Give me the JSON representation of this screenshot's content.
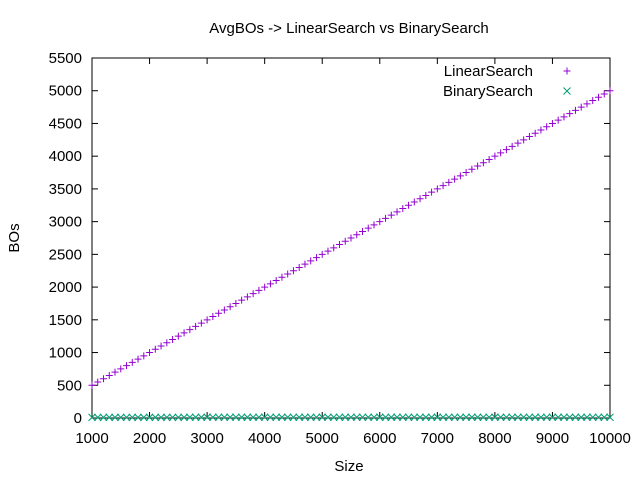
{
  "chart_data": {
    "type": "scatter",
    "title": "AvgBOs -> LinearSearch vs BinarySearch",
    "xlabel": "Size",
    "ylabel": "BOs",
    "xlim": [
      1000,
      10000
    ],
    "ylim": [
      0,
      5500
    ],
    "xticks": [
      1000,
      2000,
      3000,
      4000,
      5000,
      6000,
      7000,
      8000,
      9000,
      10000
    ],
    "yticks": [
      0,
      500,
      1000,
      1500,
      2000,
      2500,
      3000,
      3500,
      4000,
      4500,
      5000,
      5500
    ],
    "grid": false,
    "legend_position": "top-right",
    "series": [
      {
        "name": "LinearSearch",
        "color": "#9400d3",
        "marker": "plus",
        "x": [
          1000,
          1100,
          1200,
          1300,
          1400,
          1500,
          1600,
          1700,
          1800,
          1900,
          2000,
          2100,
          2200,
          2300,
          2400,
          2500,
          2600,
          2700,
          2800,
          2900,
          3000,
          3100,
          3200,
          3300,
          3400,
          3500,
          3600,
          3700,
          3800,
          3900,
          4000,
          4100,
          4200,
          4300,
          4400,
          4500,
          4600,
          4700,
          4800,
          4900,
          5000,
          5100,
          5200,
          5300,
          5400,
          5500,
          5600,
          5700,
          5800,
          5900,
          6000,
          6100,
          6200,
          6300,
          6400,
          6500,
          6600,
          6700,
          6800,
          6900,
          7000,
          7100,
          7200,
          7300,
          7400,
          7500,
          7600,
          7700,
          7800,
          7900,
          8000,
          8100,
          8200,
          8300,
          8400,
          8500,
          8600,
          8700,
          8800,
          8900,
          9000,
          9100,
          9200,
          9300,
          9400,
          9500,
          9600,
          9700,
          9800,
          9900,
          10000
        ],
        "y": [
          500,
          550,
          600,
          650,
          700,
          750,
          800,
          850,
          900,
          950,
          1000,
          1050,
          1100,
          1150,
          1200,
          1250,
          1300,
          1350,
          1400,
          1450,
          1500,
          1550,
          1600,
          1650,
          1700,
          1750,
          1800,
          1850,
          1900,
          1950,
          2000,
          2050,
          2100,
          2150,
          2200,
          2250,
          2300,
          2350,
          2400,
          2450,
          2500,
          2550,
          2600,
          2650,
          2700,
          2750,
          2800,
          2850,
          2900,
          2950,
          3000,
          3050,
          3100,
          3150,
          3200,
          3250,
          3300,
          3350,
          3400,
          3450,
          3500,
          3550,
          3600,
          3650,
          3700,
          3750,
          3800,
          3850,
          3900,
          3950,
          4000,
          4050,
          4100,
          4150,
          4200,
          4250,
          4300,
          4350,
          4400,
          4450,
          4500,
          4550,
          4600,
          4650,
          4700,
          4750,
          4800,
          4850,
          4900,
          4950,
          5000
        ]
      },
      {
        "name": "BinarySearch",
        "color": "#009e73",
        "marker": "cross",
        "x": [
          1000,
          1100,
          1200,
          1300,
          1400,
          1500,
          1600,
          1700,
          1800,
          1900,
          2000,
          2100,
          2200,
          2300,
          2400,
          2500,
          2600,
          2700,
          2800,
          2900,
          3000,
          3100,
          3200,
          3300,
          3400,
          3500,
          3600,
          3700,
          3800,
          3900,
          4000,
          4100,
          4200,
          4300,
          4400,
          4500,
          4600,
          4700,
          4800,
          4900,
          5000,
          5100,
          5200,
          5300,
          5400,
          5500,
          5600,
          5700,
          5800,
          5900,
          6000,
          6100,
          6200,
          6300,
          6400,
          6500,
          6600,
          6700,
          6800,
          6900,
          7000,
          7100,
          7200,
          7300,
          7400,
          7500,
          7600,
          7700,
          7800,
          7900,
          8000,
          8100,
          8200,
          8300,
          8400,
          8500,
          8600,
          8700,
          8800,
          8900,
          9000,
          9100,
          9200,
          9300,
          9400,
          9500,
          9600,
          9700,
          9800,
          9900,
          10000
        ],
        "y": [
          9,
          9,
          10,
          10,
          10,
          10,
          10,
          10,
          10,
          10,
          10,
          10,
          10,
          10,
          10,
          10,
          10,
          11,
          11,
          11,
          11,
          11,
          11,
          11,
          11,
          11,
          11,
          11,
          11,
          11,
          11,
          11,
          11,
          11,
          11,
          11,
          11,
          11,
          11,
          11,
          11,
          11,
          11,
          11,
          11,
          11,
          11,
          11,
          11,
          11,
          11,
          11,
          11,
          11,
          11,
          11,
          11,
          11,
          11,
          11,
          11,
          11,
          11,
          11,
          11,
          11,
          11,
          12,
          12,
          12,
          12,
          12,
          12,
          12,
          12,
          12,
          12,
          12,
          12,
          12,
          12,
          12,
          12,
          12,
          12,
          12,
          12,
          12,
          12,
          12,
          12
        ]
      }
    ]
  }
}
